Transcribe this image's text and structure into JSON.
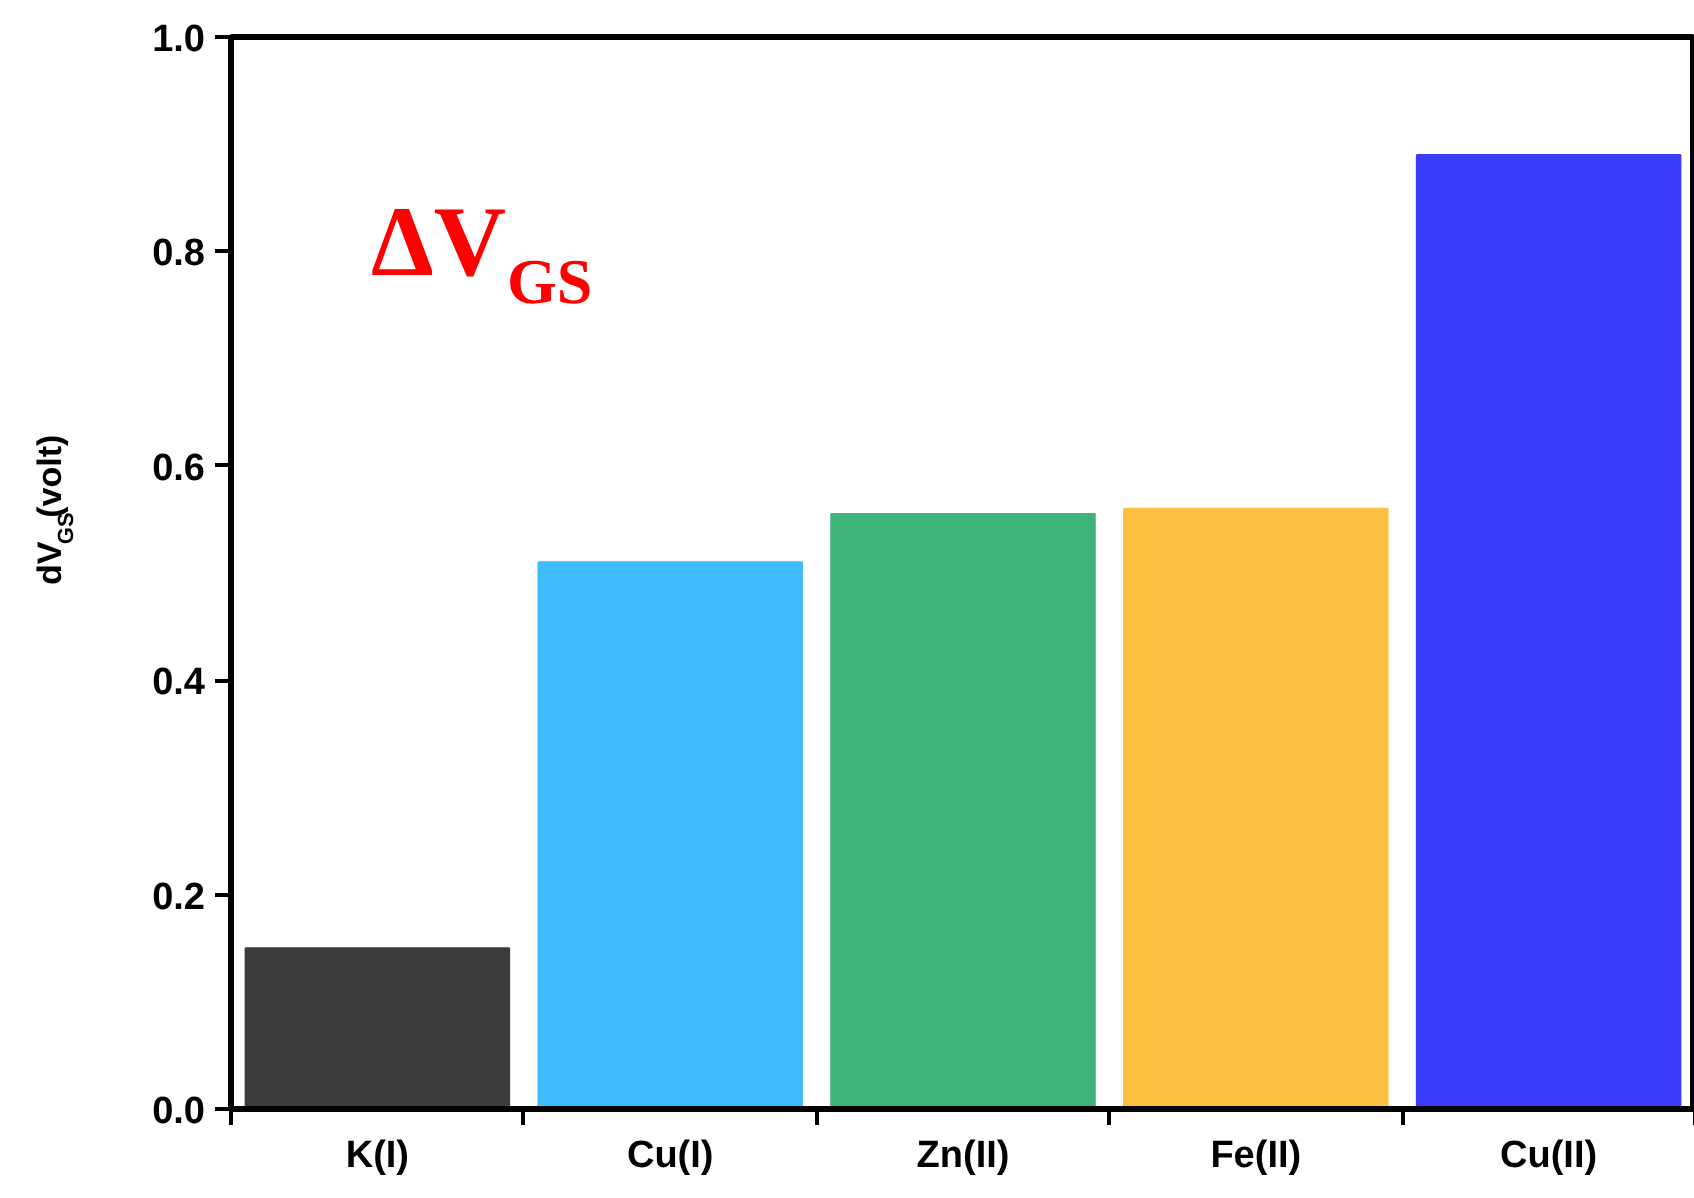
{
  "chart_data": {
    "type": "bar",
    "title": "ΔV$_{GS}$",
    "ylabel": "dV$_{GS}$(volt)",
    "categories": [
      "K(I)",
      "Cu(I)",
      "Zn(II)",
      "Fe(II)",
      "Cu(II)"
    ],
    "values": [
      0.15,
      0.51,
      0.555,
      0.56,
      0.89
    ],
    "colors": [
      "#3c3c3c",
      "#40bcfd",
      "#3fb37a",
      "#fdbf40",
      "#3c3cfb"
    ],
    "ylim": [
      0,
      1.0
    ],
    "yticks": [
      {
        "value": 0,
        "label": "0.0"
      },
      {
        "value": 0.2,
        "label": "0.2"
      },
      {
        "value": 0.4,
        "label": "0.4"
      },
      {
        "value": 0.6,
        "label": "0.6"
      },
      {
        "value": 0.8,
        "label": "0.8"
      },
      {
        "value": 1.0,
        "label": "1.0"
      }
    ],
    "grid": false
  }
}
